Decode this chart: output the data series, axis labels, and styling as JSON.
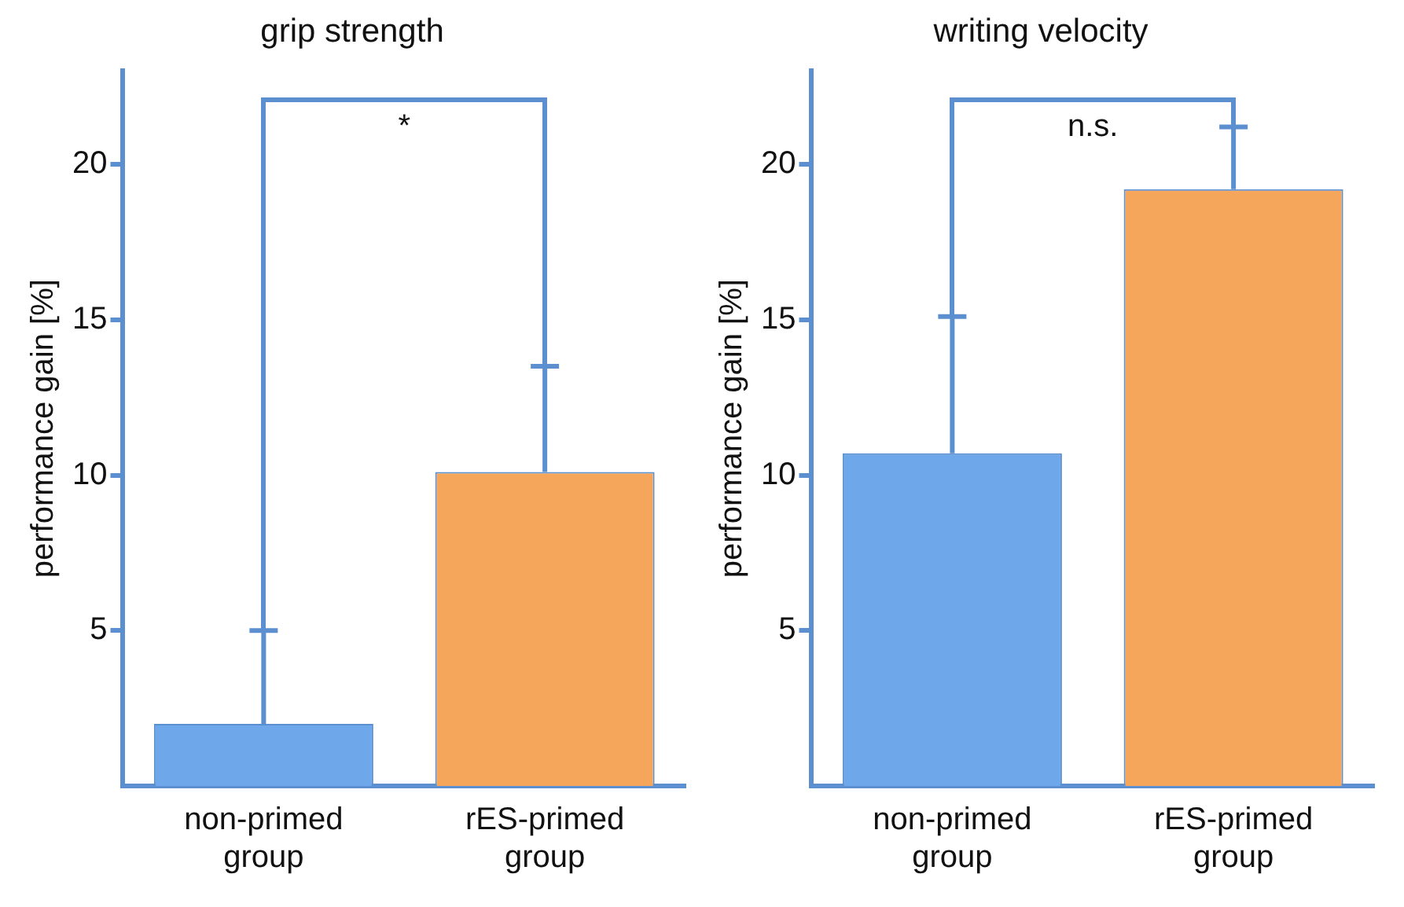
{
  "chart_data": [
    {
      "type": "bar",
      "title": "grip strength",
      "ylabel": "performance gain [%]",
      "categories": [
        "non-primed group",
        "rES-primed group"
      ],
      "values": [
        2.0,
        10.1
      ],
      "colors": [
        "#6fa8ea",
        "#f5a65b"
      ],
      "errors": [
        [
          2.0,
          5.0
        ],
        [
          10.1,
          13.5
        ]
      ],
      "ylim": [
        0,
        23
      ],
      "yticks": [
        5,
        10,
        15,
        20
      ],
      "grid": false,
      "annotations": [
        "*"
      ]
    },
    {
      "type": "bar",
      "title": "writing velocity",
      "ylabel": "performance gain [%]",
      "categories": [
        "non-primed group",
        "rES-primed group"
      ],
      "values": [
        10.7,
        19.2
      ],
      "colors": [
        "#6fa8ea",
        "#f5a65b"
      ],
      "errors": [
        [
          10.7,
          15.1
        ],
        [
          19.2,
          21.2
        ]
      ],
      "ylim": [
        0,
        23
      ],
      "yticks": [
        5,
        10,
        15,
        20
      ],
      "grid": false,
      "annotations": [
        "n.s."
      ]
    }
  ]
}
